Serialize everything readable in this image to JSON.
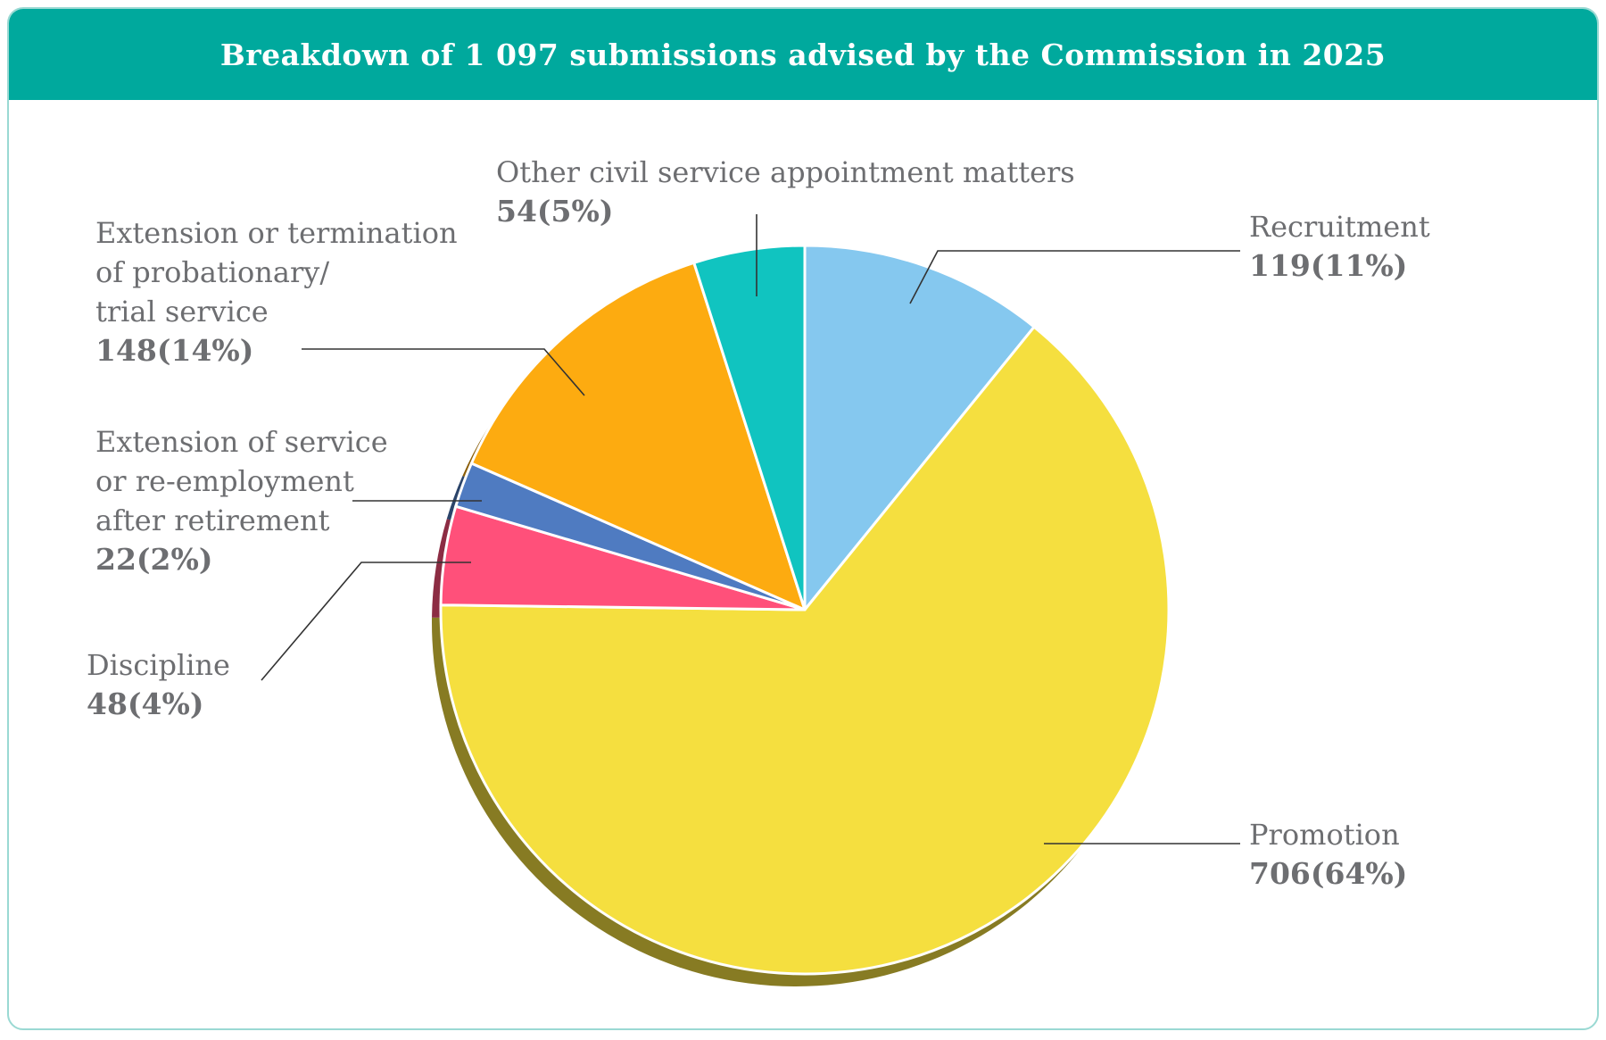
{
  "title": "Breakdown of 1 097 submissions advised by the Commission in 2025",
  "chart_data": {
    "type": "pie",
    "title": "Breakdown of 1 097 submissions advised by the Commission in 2025",
    "total": 1097,
    "slices": [
      {
        "key": "recruitment",
        "label_lines": [
          "Recruitment"
        ],
        "value": 119,
        "value_text": "119(11%)",
        "color": "#85c8ef"
      },
      {
        "key": "promotion",
        "label_lines": [
          "Promotion"
        ],
        "value": 706,
        "value_text": "706(64%)",
        "color": "#f5df3f"
      },
      {
        "key": "discipline",
        "label_lines": [
          "Discipline"
        ],
        "value": 48,
        "value_text": "48(4%)",
        "color": "#ff507a"
      },
      {
        "key": "extension-service",
        "label_lines": [
          "Extension of service",
          "or re-employment",
          "after retirement"
        ],
        "value": 22,
        "value_text": "22(2%)",
        "color": "#4f7bc1"
      },
      {
        "key": "probationary",
        "label_lines": [
          "Extension or termination",
          "of probationary/",
          "trial service"
        ],
        "value": 148,
        "value_text": "148(14%)",
        "color": "#fdab10"
      },
      {
        "key": "other",
        "label_lines": [
          "Other civil service appointment matters"
        ],
        "value": 54,
        "value_text": "54(5%)",
        "color": "#10c4c0"
      }
    ]
  }
}
